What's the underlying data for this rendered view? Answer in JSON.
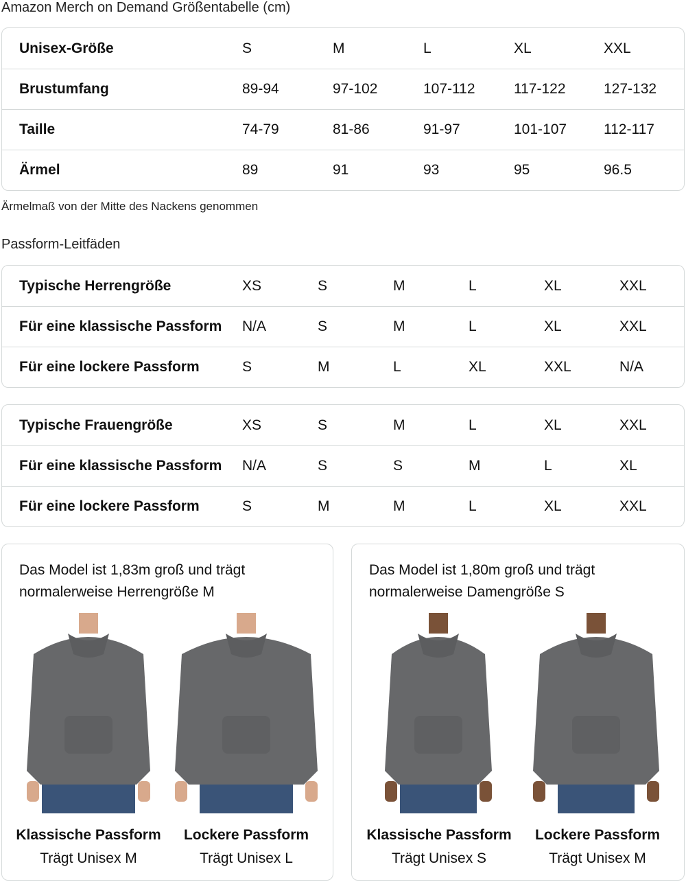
{
  "size_chart": {
    "title": "Amazon Merch on Demand Größentabelle (cm)",
    "rows": [
      {
        "label": "Unisex-Größe",
        "values": [
          "S",
          "M",
          "L",
          "XL",
          "XXL"
        ]
      },
      {
        "label": "Brustumfang",
        "values": [
          "89-94",
          "97-102",
          "107-112",
          "117-122",
          "127-132"
        ]
      },
      {
        "label": "Taille",
        "values": [
          "74-79",
          "81-86",
          "91-97",
          "101-107",
          "112-117"
        ]
      },
      {
        "label": "Ärmel",
        "values": [
          "89",
          "91",
          "93",
          "95",
          "96.5"
        ]
      }
    ],
    "note": "Ärmelmaß von der Mitte des Nackens genommen"
  },
  "fit_guides": {
    "title": "Passform-Leitfäden",
    "men": [
      {
        "label": "Typische Herrengröße",
        "values": [
          "XS",
          "S",
          "M",
          "L",
          "XL",
          "XXL"
        ]
      },
      {
        "label": "Für eine klassische Passform",
        "values": [
          "N/A",
          "S",
          "M",
          "L",
          "XL",
          "XXL"
        ]
      },
      {
        "label": "Für eine lockere Passform",
        "values": [
          "S",
          "M",
          "L",
          "XL",
          "XXL",
          "N/A"
        ]
      }
    ],
    "women": [
      {
        "label": "Typische Frauengröße",
        "values": [
          "XS",
          "S",
          "M",
          "L",
          "XL",
          "XXL"
        ]
      },
      {
        "label": "Für eine klassische Passform",
        "values": [
          "N/A",
          "S",
          "S",
          "M",
          "L",
          "XL"
        ]
      },
      {
        "label": "Für eine lockere Passform",
        "values": [
          "S",
          "M",
          "M",
          "L",
          "XL",
          "XXL"
        ]
      }
    ]
  },
  "models": [
    {
      "desc_line1": "Das Model ist 1,83m groß und trägt",
      "desc_line2": "normalerweise Herrengröße M",
      "figures": [
        {
          "title": "Klassische Passform",
          "sub": "Trägt Unisex M"
        },
        {
          "title": "Lockere Passform",
          "sub": "Trägt Unisex L"
        }
      ]
    },
    {
      "desc_line1": "Das Model ist 1,80m groß und trägt",
      "desc_line2": "normalerweise Damengröße S",
      "figures": [
        {
          "title": "Klassische Passform",
          "sub": "Trägt Unisex S"
        },
        {
          "title": "Lockere Passform",
          "sub": "Trägt Unisex M"
        }
      ]
    }
  ],
  "colors": {
    "hoodie": "#67686a",
    "border": "#d5d9d9",
    "jeans": "#3a5478"
  }
}
